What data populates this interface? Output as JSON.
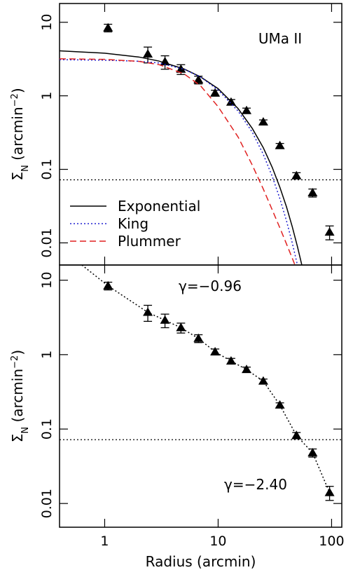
{
  "chart_data": [
    {
      "type": "scatter",
      "log_x": true,
      "log_y": true,
      "xlim": [
        0.4,
        123
      ],
      "ylim": [
        0.005,
        18
      ],
      "xticks": [
        1,
        10,
        100
      ],
      "yticks": [
        10,
        1,
        0.1,
        0.01
      ],
      "xtick_labels": false,
      "ylabel": [
        "Σ",
        "N",
        " (arcmin",
        "−2",
        ")"
      ],
      "annotations": [
        "UMa II"
      ],
      "legend": "lower left",
      "reference_line": 0.072,
      "series": [
        {
          "type": "scatter",
          "color": "#000000",
          "x": [
            1.07,
            2.4,
            3.4,
            4.7,
            6.7,
            9.4,
            13,
            17.8,
            25,
            35,
            49,
            68,
            96
          ],
          "values": [
            8.4,
            3.7,
            2.9,
            2.3,
            1.65,
            1.09,
            0.82,
            0.63,
            0.44,
            0.21,
            0.082,
            0.048,
            0.014
          ],
          "errors": [
            1.0,
            0.9,
            0.6,
            0.35,
            0.2,
            0.1,
            0.07,
            0.05,
            0.03,
            0.015,
            0.008,
            0.006,
            0.003
          ]
        },
        {
          "type": "line",
          "name": "Exponential",
          "color": "#000000",
          "dash": "solid",
          "x": [
            0.4,
            1,
            2,
            3,
            5,
            7,
            10,
            15,
            20,
            25,
            30,
            35,
            40,
            45,
            50,
            55
          ],
          "values": [
            4.09,
            3.8,
            3.37,
            2.97,
            2.32,
            1.81,
            1.25,
            0.67,
            0.36,
            0.197,
            0.106,
            0.057,
            0.031,
            0.0166,
            0.0089,
            0.0048
          ]
        },
        {
          "type": "line",
          "name": "King",
          "color": "#2020d0",
          "dash": "dotted",
          "x": [
            0.4,
            1,
            2,
            3,
            5,
            7,
            10,
            15,
            20,
            25,
            30,
            35,
            40,
            45,
            50
          ],
          "values": [
            3.1,
            3.05,
            2.95,
            2.8,
            2.3,
            1.8,
            1.2,
            0.62,
            0.32,
            0.16,
            0.08,
            0.04,
            0.02,
            0.01,
            0.005
          ]
        },
        {
          "type": "line",
          "name": "Plummer",
          "color": "#e02020",
          "dash": "dashed",
          "x": [
            0.4,
            1,
            2,
            3,
            5,
            7,
            10,
            15,
            20,
            25,
            30,
            35,
            40,
            45,
            48
          ],
          "values": [
            3.19,
            3.13,
            2.94,
            2.66,
            1.99,
            1.37,
            0.71,
            0.275,
            0.114,
            0.054,
            0.028,
            0.016,
            0.0097,
            0.0062,
            0.0048
          ]
        }
      ]
    },
    {
      "type": "scatter",
      "log_x": true,
      "log_y": true,
      "xlim": [
        0.4,
        123
      ],
      "ylim": [
        0.0048,
        16
      ],
      "xticks": [
        1,
        10,
        100
      ],
      "yticks": [
        10,
        1,
        0.1,
        0.01
      ],
      "xtick_labels": true,
      "ylabel": [
        "Σ",
        "N",
        " (arcmin",
        "−2",
        ")"
      ],
      "xlabel": "Radius (arcmin)",
      "annotations": [
        "γ=−0.96",
        "γ=−2.40"
      ],
      "reference_line": 0.072,
      "series": [
        {
          "type": "scatter",
          "color": "#000000",
          "x": [
            1.07,
            2.4,
            3.4,
            4.7,
            6.7,
            9.4,
            13,
            17.8,
            25,
            35,
            49,
            68,
            96
          ],
          "values": [
            8.4,
            3.7,
            2.9,
            2.3,
            1.65,
            1.09,
            0.82,
            0.63,
            0.44,
            0.21,
            0.082,
            0.048,
            0.014
          ],
          "errors": [
            1.0,
            0.9,
            0.6,
            0.35,
            0.2,
            0.1,
            0.07,
            0.05,
            0.03,
            0.015,
            0.008,
            0.006,
            0.003
          ]
        },
        {
          "type": "line",
          "color": "#000000",
          "dash": "dotted",
          "x": [
            0.63,
            1.07,
            2.4,
            3.4,
            4.7,
            6.7,
            9.4,
            13,
            17.8,
            25,
            35,
            49,
            68,
            96
          ],
          "values": [
            16,
            8.4,
            3.7,
            2.9,
            2.3,
            1.65,
            1.09,
            0.82,
            0.63,
            0.44,
            0.21,
            0.082,
            0.048,
            0.014
          ]
        }
      ]
    }
  ]
}
